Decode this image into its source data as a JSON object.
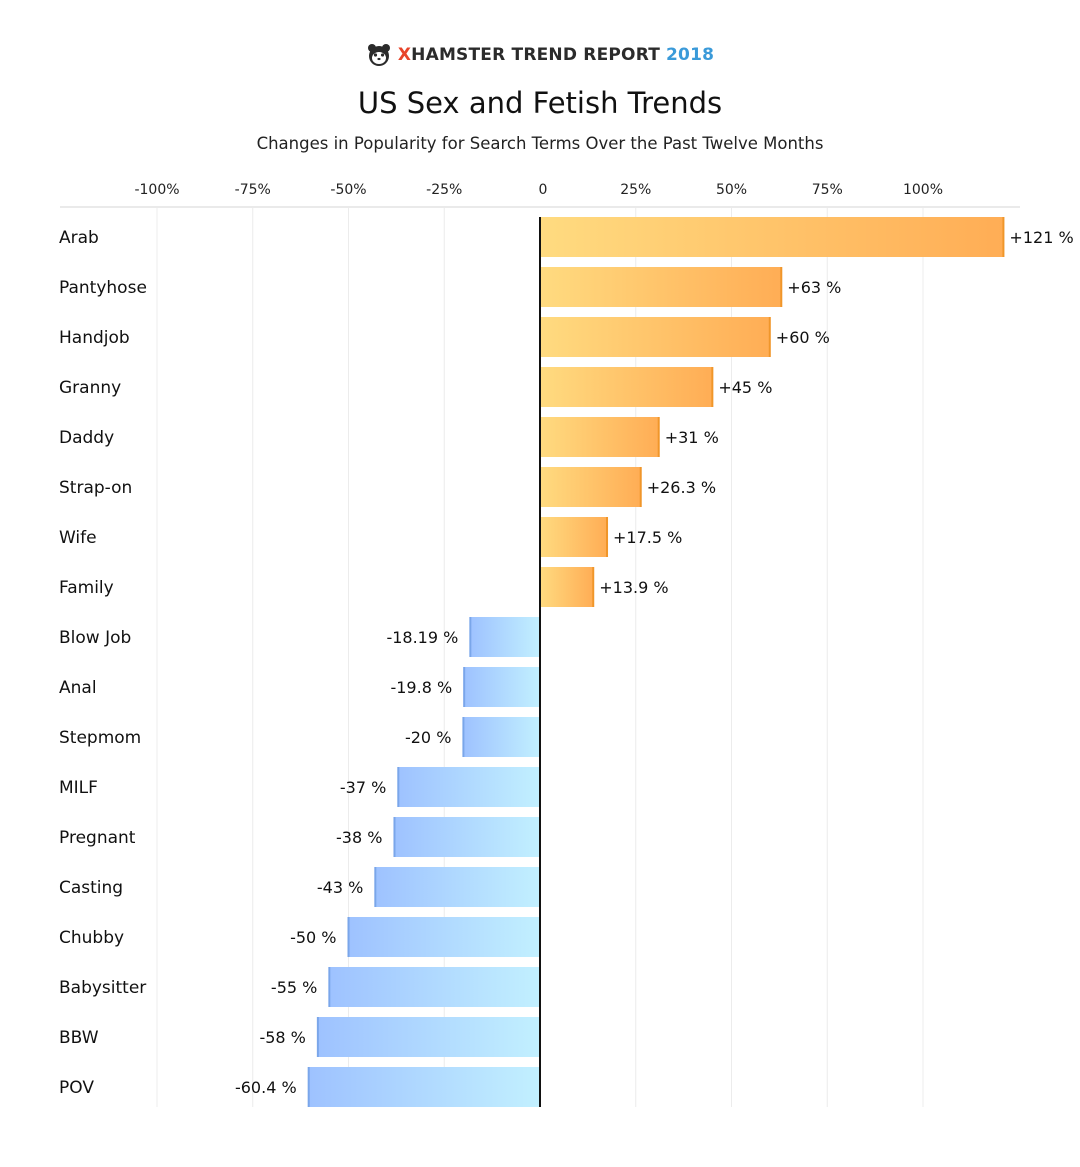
{
  "header": {
    "logo_x": "X",
    "logo_brand": "HAMSTER TREND REPORT",
    "logo_year": "2018",
    "logo_icon": "hamster-icon",
    "title": "US Sex and Fetish Trends",
    "subtitle": "Changes in Popularity for Search Terms Over the Past Twelve Months"
  },
  "colors": {
    "positive_light": "#ffdb80",
    "positive_dark": "#ffad55",
    "negative_light": "#c2f0ff",
    "negative_dark": "#9ec2ff",
    "axis": "#111111",
    "grid": "#ececec"
  },
  "chart_data": {
    "type": "bar",
    "orientation": "horizontal",
    "title": "US Sex and Fetish Trends",
    "subtitle": "Changes in Popularity for Search Terms Over the Past Twelve Months",
    "xlim": [
      -100,
      125
    ],
    "ticks": [
      -100,
      -75,
      -50,
      -25,
      0,
      25,
      50,
      75,
      100
    ],
    "tick_labels": [
      "-100%",
      "-75%",
      "-50%",
      "-25%",
      "0",
      "25%",
      "50%",
      "75%",
      "100%"
    ],
    "categories": [
      "Arab",
      "Pantyhose",
      "Handjob",
      "Granny",
      "Daddy",
      "Strap-on",
      "Wife",
      "Family",
      "Blow Job",
      "Anal",
      "Stepmom",
      "MILF",
      "Pregnant",
      "Casting",
      "Chubby",
      "Babysitter",
      "BBW",
      "POV"
    ],
    "values": [
      121,
      63,
      60,
      45,
      31,
      26.3,
      17.5,
      13.9,
      -18.19,
      -19.8,
      -20,
      -37,
      -38,
      -43,
      -50,
      -55,
      -58,
      -60.4
    ],
    "value_labels": [
      "+121 %",
      "+63 %",
      "+60 %",
      "+45 %",
      "+31 %",
      "+26.3 %",
      "+17.5 %",
      "+13.9 %",
      "-18.19 %",
      "-19.8 %",
      "-20 %",
      "-37 %",
      "-38 %",
      "-43 %",
      "-50 %",
      "-55 %",
      "-58 %",
      "-60.4 %"
    ],
    "grid": true,
    "legend": "none"
  }
}
